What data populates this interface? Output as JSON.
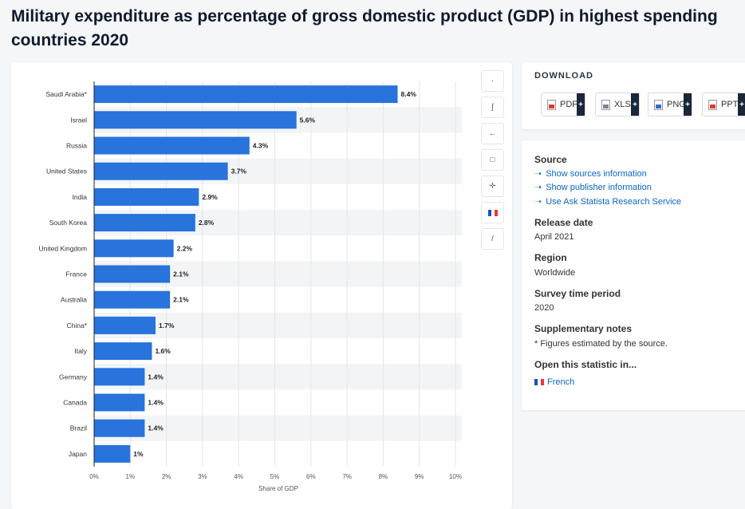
{
  "title": "Military expenditure as percentage of gross domestic product (GDP) in highest spending countries 2020",
  "chart_data": {
    "type": "bar",
    "orientation": "horizontal",
    "categories": [
      "Saudi Arabia*",
      "Israel",
      "Russia",
      "United States",
      "India",
      "South Korea",
      "United Kingdom",
      "France",
      "Australia",
      "China*",
      "Italy",
      "Germany",
      "Canada",
      "Brazil",
      "Japan"
    ],
    "values": [
      8.4,
      5.6,
      4.3,
      3.7,
      2.9,
      2.8,
      2.2,
      2.1,
      2.1,
      1.7,
      1.6,
      1.4,
      1.4,
      1.4,
      1
    ],
    "data_labels": [
      "8.4%",
      "5.6%",
      "4.3%",
      "3.7%",
      "2.9%",
      "2.8%",
      "2.2%",
      "2.1%",
      "2.1%",
      "1.7%",
      "1.6%",
      "1.4%",
      "1.4%",
      "1.4%",
      "1%"
    ],
    "x_ticks": [
      "0%",
      "1%",
      "2%",
      "3%",
      "4%",
      "5%",
      "6%",
      "7%",
      "8%",
      "9%",
      "10%"
    ],
    "xlim": [
      0,
      10
    ],
    "xlabel": "Share of GDP",
    "ylabel": "",
    "bar_color": "#2873dc",
    "grid": true
  },
  "toolbar": {
    "icons": [
      "star-icon",
      "bell-icon",
      "share-icon",
      "quote-icon",
      "settings-icon",
      "flag-icon",
      "print-icon"
    ],
    "glyphs": [
      "·",
      "ʃ",
      "←",
      "□",
      "✛",
      "",
      "/"
    ]
  },
  "download": {
    "title": "DOWNLOAD",
    "buttons": [
      {
        "label": "PDF",
        "color": "#d9402b"
      },
      {
        "label": "XLS",
        "color": "#7a8591"
      },
      {
        "label": "PNG",
        "color": "#2b6cd9"
      },
      {
        "label": "PPT",
        "color": "#d9402b"
      }
    ]
  },
  "info": {
    "source_heading": "Source",
    "source_links": [
      "Show sources information",
      "Show publisher information",
      "Use Ask Statista Research Service"
    ],
    "release_heading": "Release date",
    "release_value": "April 2021",
    "region_heading": "Region",
    "region_value": "Worldwide",
    "survey_heading": "Survey time period",
    "survey_value": "2020",
    "notes_heading": "Supplementary notes",
    "notes_value": "* Figures estimated by the source.",
    "open_heading": "Open this statistic in...",
    "open_link": "French"
  },
  "colors": {
    "accent": "#0b66c1",
    "flag_blue": "#1f4fb5",
    "flag_white": "#ffffff",
    "flag_red": "#e23b3b"
  }
}
